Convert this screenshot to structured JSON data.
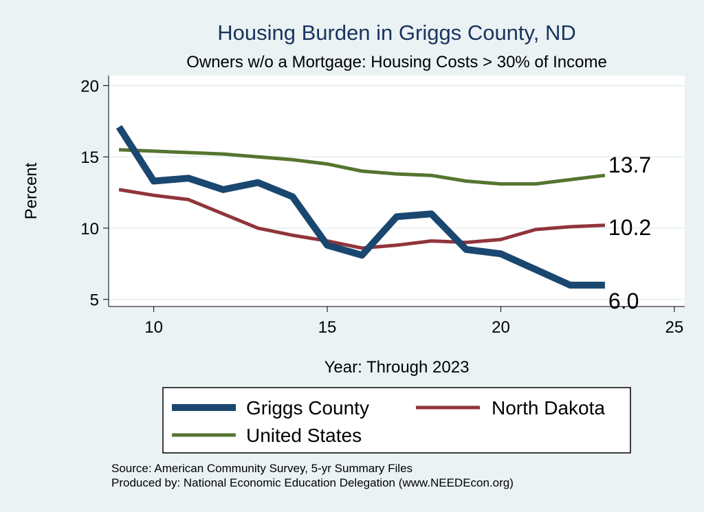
{
  "chart_data": {
    "type": "line",
    "title": "Housing Burden in Griggs County, ND",
    "subtitle": "Owners w/o a Mortgage: Housing Costs > 30% of Income",
    "xlabel": "Year: Through 2023",
    "ylabel": "Percent",
    "xlim": [
      8.7,
      25.3
    ],
    "ylim": [
      4.5,
      20.7
    ],
    "xticks": [
      10,
      15,
      20,
      25
    ],
    "yticks": [
      5,
      10,
      15,
      20
    ],
    "grid": true,
    "legend_position": "bottom",
    "series": [
      {
        "name": "Griggs County",
        "color": "#1a476f",
        "x": [
          9,
          10,
          11,
          12,
          13,
          14,
          15,
          16,
          17,
          18,
          19,
          20,
          21,
          22,
          23
        ],
        "values": [
          17.1,
          13.3,
          13.5,
          12.7,
          13.2,
          12.2,
          8.8,
          8.1,
          10.8,
          11.0,
          8.5,
          8.2,
          7.1,
          6.0,
          6.0
        ],
        "end_label": "6.0"
      },
      {
        "name": "North Dakota",
        "color": "#90353b",
        "x": [
          9,
          10,
          11,
          12,
          13,
          14,
          15,
          16,
          17,
          18,
          19,
          20,
          21,
          22,
          23
        ],
        "values": [
          12.7,
          12.3,
          12.0,
          11.0,
          10.0,
          9.5,
          9.1,
          8.6,
          8.8,
          9.1,
          9.0,
          9.2,
          9.9,
          10.1,
          10.2
        ],
        "end_label": "10.2"
      },
      {
        "name": "United States",
        "color": "#55752f",
        "x": [
          9,
          10,
          11,
          12,
          13,
          14,
          15,
          16,
          17,
          18,
          19,
          20,
          21,
          22,
          23
        ],
        "values": [
          15.5,
          15.4,
          15.3,
          15.2,
          15.0,
          14.8,
          14.5,
          14.0,
          13.8,
          13.7,
          13.3,
          13.1,
          13.1,
          13.4,
          13.7
        ],
        "end_label": "13.7"
      }
    ]
  },
  "notes": {
    "source": "Source: American Community Survey, 5-yr Summary Files",
    "producer": "Produced by: National Economic Education Delegation (www.NEEDEcon.org)"
  }
}
